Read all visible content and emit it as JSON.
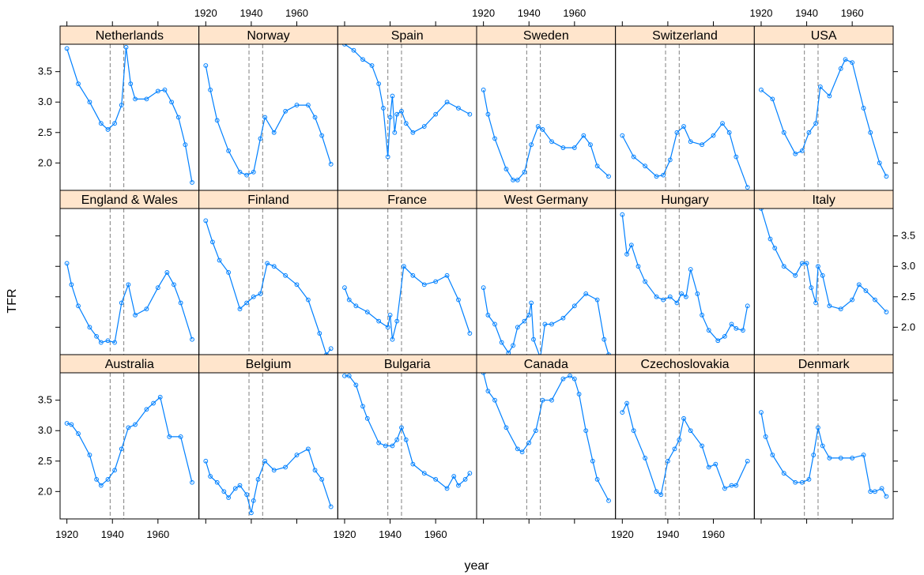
{
  "chart_data": {
    "type": "line",
    "xlabel": "year",
    "ylabel": "TFR",
    "xlim": [
      1917,
      1978
    ],
    "ylim": [
      1.55,
      3.95
    ],
    "x_ticks": [
      1920,
      1940,
      1960
    ],
    "x_tick_labels": [
      "1920",
      "1940",
      "1960"
    ],
    "y_ticks": [
      2.0,
      2.5,
      3.0,
      3.5
    ],
    "y_tick_labels": [
      "2.0",
      "2.5",
      "3.0",
      "3.5"
    ],
    "reference_lines_x": [
      1939,
      1945
    ],
    "series_color": "#0080ff",
    "strip_color": "#ffe5cc",
    "layout": {
      "columns": 6,
      "rows": 3
    },
    "panels": [
      {
        "country": "Netherlands",
        "x": [
          1920,
          1925,
          1930,
          1935,
          1938,
          1941,
          1944,
          1946,
          1948,
          1950,
          1955,
          1960,
          1963,
          1966,
          1969,
          1972,
          1975
        ],
        "y": [
          3.88,
          3.3,
          3.0,
          2.65,
          2.55,
          2.65,
          2.95,
          3.9,
          3.3,
          3.05,
          3.05,
          3.18,
          3.2,
          3.0,
          2.75,
          2.3,
          1.68
        ]
      },
      {
        "country": "Norway",
        "x": [
          1920,
          1922,
          1925,
          1930,
          1935,
          1938,
          1941,
          1944,
          1946,
          1950,
          1955,
          1960,
          1965,
          1968,
          1971,
          1975
        ],
        "y": [
          3.6,
          3.2,
          2.7,
          2.2,
          1.85,
          1.8,
          1.85,
          2.4,
          2.75,
          2.5,
          2.85,
          2.95,
          2.95,
          2.75,
          2.45,
          1.98
        ]
      },
      {
        "country": "Spain",
        "x": [
          1920,
          1924,
          1928,
          1932,
          1935,
          1937,
          1939,
          1940,
          1941,
          1942,
          1943,
          1945,
          1947,
          1950,
          1955,
          1960,
          1965,
          1970,
          1975
        ],
        "y": [
          3.95,
          3.85,
          3.7,
          3.6,
          3.3,
          2.9,
          2.1,
          2.75,
          3.1,
          2.5,
          2.8,
          2.85,
          2.65,
          2.5,
          2.6,
          2.8,
          3.0,
          2.9,
          2.8
        ]
      },
      {
        "country": "Sweden",
        "x": [
          1920,
          1922,
          1925,
          1930,
          1933,
          1935,
          1938,
          1941,
          1944,
          1946,
          1950,
          1955,
          1960,
          1964,
          1967,
          1970,
          1975
        ],
        "y": [
          3.2,
          2.8,
          2.4,
          1.9,
          1.72,
          1.72,
          1.85,
          2.3,
          2.6,
          2.55,
          2.35,
          2.25,
          2.25,
          2.45,
          2.3,
          1.95,
          1.78
        ]
      },
      {
        "country": "Switzerland",
        "x": [
          1920,
          1925,
          1930,
          1935,
          1938,
          1941,
          1944,
          1947,
          1950,
          1955,
          1960,
          1964,
          1967,
          1970,
          1975
        ],
        "y": [
          2.45,
          2.1,
          1.95,
          1.78,
          1.8,
          2.05,
          2.5,
          2.6,
          2.35,
          2.3,
          2.45,
          2.65,
          2.5,
          2.1,
          1.6
        ]
      },
      {
        "country": "USA",
        "x": [
          1920,
          1925,
          1930,
          1935,
          1938,
          1941,
          1944,
          1946,
          1950,
          1955,
          1957,
          1960,
          1965,
          1968,
          1972,
          1975
        ],
        "y": [
          3.2,
          3.05,
          2.5,
          2.15,
          2.2,
          2.5,
          2.65,
          3.25,
          3.1,
          3.55,
          3.7,
          3.65,
          2.9,
          2.5,
          2.0,
          1.78
        ]
      },
      {
        "country": "England & Wales",
        "x": [
          1920,
          1922,
          1925,
          1930,
          1933,
          1935,
          1938,
          1941,
          1944,
          1947,
          1950,
          1955,
          1960,
          1964,
          1967,
          1970,
          1975
        ],
        "y": [
          3.05,
          2.7,
          2.35,
          2.0,
          1.85,
          1.75,
          1.78,
          1.75,
          2.4,
          2.7,
          2.2,
          2.3,
          2.65,
          2.9,
          2.7,
          2.4,
          1.8
        ]
      },
      {
        "country": "Finland",
        "x": [
          1920,
          1923,
          1926,
          1930,
          1935,
          1938,
          1941,
          1944,
          1947,
          1950,
          1955,
          1960,
          1965,
          1970,
          1973,
          1975
        ],
        "y": [
          3.75,
          3.4,
          3.1,
          2.9,
          2.3,
          2.4,
          2.5,
          2.55,
          3.05,
          3.0,
          2.85,
          2.7,
          2.45,
          1.9,
          1.55,
          1.65
        ]
      },
      {
        "country": "France",
        "x": [
          1920,
          1922,
          1925,
          1930,
          1935,
          1939,
          1940,
          1941,
          1943,
          1946,
          1950,
          1955,
          1960,
          1965,
          1970,
          1975
        ],
        "y": [
          2.65,
          2.45,
          2.35,
          2.25,
          2.1,
          2.0,
          2.2,
          1.8,
          2.1,
          3.0,
          2.85,
          2.7,
          2.75,
          2.85,
          2.45,
          1.9
        ]
      },
      {
        "country": "West Germany",
        "x": [
          1920,
          1922,
          1925,
          1928,
          1931,
          1933,
          1935,
          1938,
          1940,
          1941,
          1942,
          1945,
          1947,
          1950,
          1955,
          1960,
          1965,
          1970,
          1973,
          1975
        ],
        "y": [
          2.65,
          2.2,
          2.05,
          1.75,
          1.58,
          1.7,
          2.0,
          2.1,
          2.2,
          2.4,
          1.8,
          1.5,
          2.05,
          2.05,
          2.15,
          2.35,
          2.55,
          2.45,
          1.8,
          1.55
        ]
      },
      {
        "country": "Hungary",
        "x": [
          1920,
          1922,
          1924,
          1927,
          1930,
          1935,
          1938,
          1941,
          1944,
          1946,
          1948,
          1950,
          1953,
          1955,
          1958,
          1962,
          1965,
          1968,
          1970,
          1973,
          1975
        ],
        "y": [
          3.85,
          3.2,
          3.35,
          3.0,
          2.75,
          2.5,
          2.45,
          2.5,
          2.4,
          2.55,
          2.5,
          2.95,
          2.55,
          2.2,
          1.95,
          1.78,
          1.85,
          2.05,
          1.98,
          1.95,
          2.35
        ]
      },
      {
        "country": "Italy",
        "x": [
          1920,
          1924,
          1926,
          1930,
          1935,
          1938,
          1940,
          1942,
          1944,
          1945,
          1947,
          1950,
          1955,
          1960,
          1963,
          1966,
          1970,
          1975
        ],
        "y": [
          3.95,
          3.45,
          3.3,
          3.0,
          2.85,
          3.05,
          3.05,
          2.65,
          2.4,
          3.0,
          2.85,
          2.35,
          2.3,
          2.45,
          2.7,
          2.6,
          2.45,
          2.25
        ]
      },
      {
        "country": "Australia",
        "x": [
          1920,
          1922,
          1925,
          1930,
          1933,
          1935,
          1938,
          1941,
          1944,
          1947,
          1950,
          1955,
          1958,
          1961,
          1965,
          1970,
          1975
        ],
        "y": [
          3.12,
          3.1,
          2.95,
          2.6,
          2.2,
          2.1,
          2.2,
          2.35,
          2.7,
          3.05,
          3.1,
          3.35,
          3.45,
          3.55,
          2.9,
          2.9,
          2.15
        ]
      },
      {
        "country": "Belgium",
        "x": [
          1920,
          1922,
          1925,
          1928,
          1930,
          1933,
          1935,
          1938,
          1940,
          1941,
          1943,
          1946,
          1950,
          1955,
          1960,
          1965,
          1968,
          1971,
          1975
        ],
        "y": [
          2.5,
          2.25,
          2.15,
          2.0,
          1.9,
          2.05,
          2.1,
          1.95,
          1.65,
          1.85,
          2.2,
          2.5,
          2.35,
          2.4,
          2.6,
          2.7,
          2.35,
          2.2,
          1.75
        ]
      },
      {
        "country": "Bulgaria",
        "x": [
          1920,
          1922,
          1925,
          1928,
          1930,
          1935,
          1938,
          1941,
          1943,
          1945,
          1947,
          1950,
          1955,
          1960,
          1965,
          1968,
          1970,
          1973,
          1975
        ],
        "y": [
          3.9,
          3.9,
          3.75,
          3.4,
          3.2,
          2.8,
          2.75,
          2.75,
          2.85,
          3.05,
          2.85,
          2.45,
          2.3,
          2.2,
          2.05,
          2.25,
          2.1,
          2.2,
          2.3
        ]
      },
      {
        "country": "Canada",
        "x": [
          1920,
          1922,
          1925,
          1930,
          1935,
          1937,
          1940,
          1943,
          1946,
          1950,
          1955,
          1958,
          1960,
          1962,
          1965,
          1968,
          1970,
          1975
        ],
        "y": [
          3.95,
          3.65,
          3.5,
          3.05,
          2.7,
          2.65,
          2.8,
          3.0,
          3.5,
          3.5,
          3.85,
          3.9,
          3.85,
          3.6,
          3.0,
          2.5,
          2.2,
          1.85
        ]
      },
      {
        "country": "Czechoslovakia",
        "x": [
          1920,
          1922,
          1925,
          1930,
          1935,
          1937,
          1940,
          1943,
          1945,
          1947,
          1950,
          1955,
          1958,
          1961,
          1965,
          1968,
          1970,
          1975
        ],
        "y": [
          3.3,
          3.45,
          3.0,
          2.55,
          2.0,
          1.95,
          2.5,
          2.7,
          2.85,
          3.2,
          3.0,
          2.75,
          2.4,
          2.45,
          2.05,
          2.1,
          2.1,
          2.5
        ]
      },
      {
        "country": "Denmark",
        "x": [
          1920,
          1922,
          1925,
          1930,
          1935,
          1938,
          1941,
          1943,
          1945,
          1947,
          1950,
          1955,
          1960,
          1965,
          1968,
          1970,
          1973,
          1975
        ],
        "y": [
          3.3,
          2.9,
          2.6,
          2.3,
          2.15,
          2.15,
          2.2,
          2.6,
          3.05,
          2.75,
          2.55,
          2.55,
          2.55,
          2.6,
          2.0,
          2.0,
          2.05,
          1.92
        ]
      }
    ]
  }
}
